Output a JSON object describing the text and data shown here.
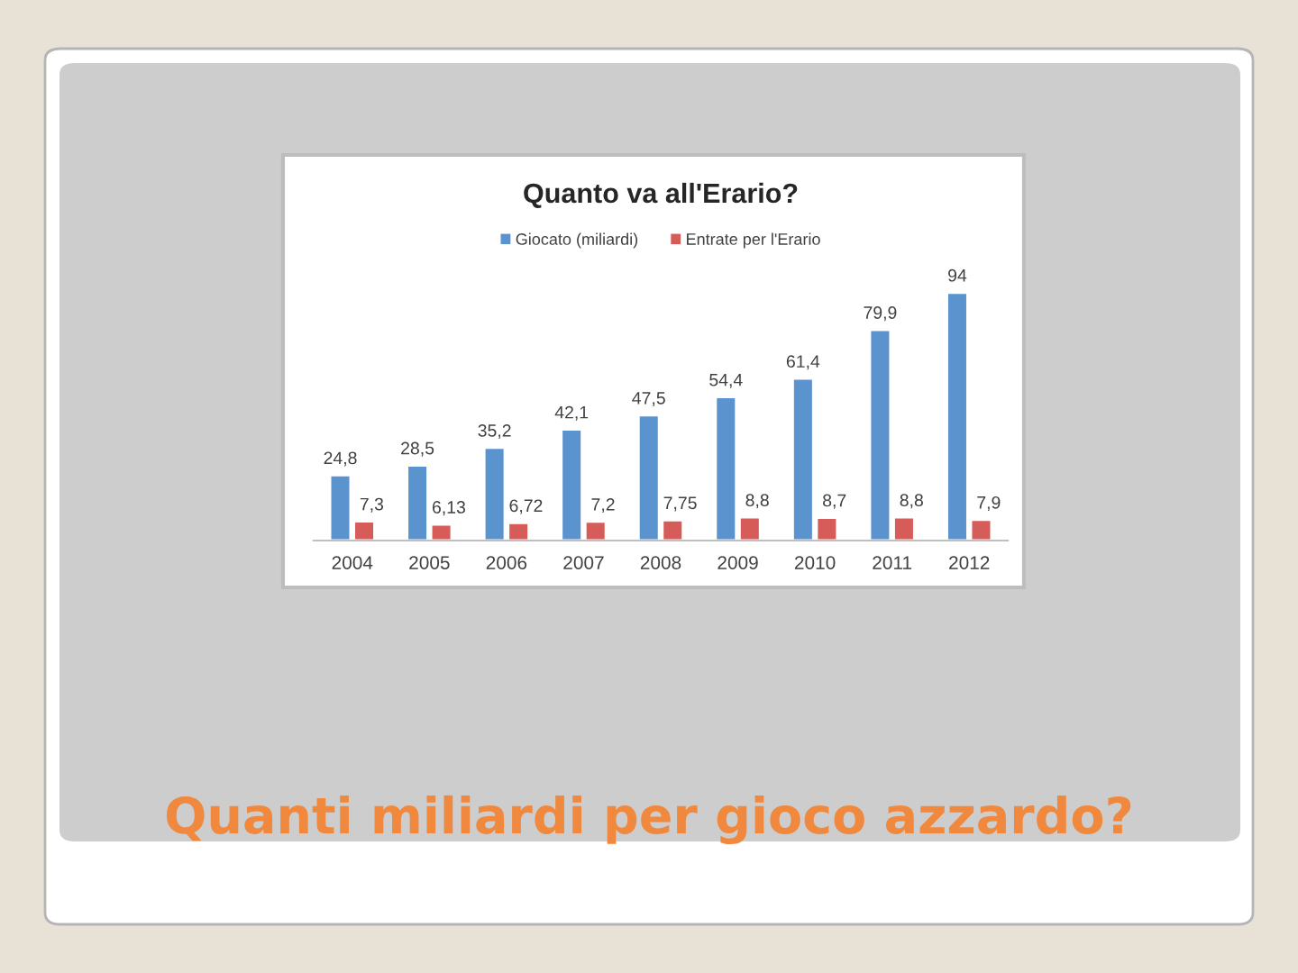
{
  "chart_data": {
    "type": "bar",
    "title": "Quanto va all'Erario?",
    "subtitle": "Quanti miliardi per gioco azzardo?",
    "categories": [
      "2004",
      "2005",
      "2006",
      "2007",
      "2008",
      "2009",
      "2010",
      "2011",
      "2012"
    ],
    "series": [
      {
        "name": "Giocato (miliardi)",
        "color": "#5b93cf",
        "values": [
          24.8,
          28.5,
          35.2,
          42.1,
          47.5,
          54.4,
          61.4,
          79.9,
          94
        ],
        "value_labels": [
          "24,8",
          "28,5",
          "35,2",
          "42,1",
          "47,5",
          "54,4",
          "61,4",
          "79,9",
          "94"
        ]
      },
      {
        "name": "Entrate per l'Erario",
        "color": "#d65c5a",
        "values": [
          7.3,
          6.13,
          6.72,
          7.2,
          7.75,
          8.8,
          8.7,
          8.8,
          7.9
        ],
        "value_labels": [
          "7,3",
          "6,13",
          "6,72",
          "7,2",
          "7,75",
          "8,8",
          "8,7",
          "8,8",
          "7,9"
        ]
      }
    ],
    "legend": "top",
    "grid": false,
    "tick_labels": "x"
  }
}
